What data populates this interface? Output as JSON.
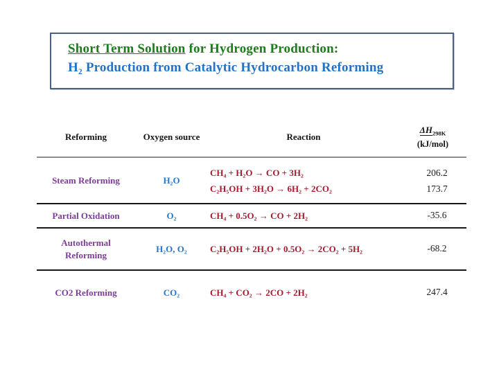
{
  "colors": {
    "title_green": "#1e7b1e",
    "title_blue": "#2272c6",
    "label_purple": "#7d3c98",
    "oxygen_blue": "#2777cc",
    "reaction_red": "#a51c30",
    "box_border": "#4d6080",
    "header_rule_gray": "#8c8c8c",
    "row_rule_black": "#161616"
  },
  "title_box": {
    "line1_underlined": "Short Term Solution",
    "line1_rest": " for Hydrogen Production:",
    "line2": "H₂ Production from Catalytic Hydrocarbon Reforming"
  },
  "table": {
    "headers": {
      "reforming": "Reforming",
      "oxygen_source": "Oxygen source",
      "reaction": "Reaction",
      "dh_symbol": "ΔH",
      "dh_subscript": "298K",
      "dh_units": "(kJ/mol)"
    },
    "rows": [
      {
        "reforming": "Steam Reforming",
        "oxygen_source": "H₂O",
        "reactions": [
          "CH₄ + H₂O → CO + 3H₂",
          "C₂H₅OH + 3H₂O → 6H₂ + 2CO₂"
        ],
        "dh": [
          "206.2",
          "173.7"
        ]
      },
      {
        "reforming": "Partial Oxidation",
        "oxygen_source": "O₂",
        "reactions": [
          "CH₄ + 0.5O₂ → CO + 2H₂"
        ],
        "dh": [
          "-35.6"
        ]
      },
      {
        "reforming": "Autothermal Reforming",
        "oxygen_source": "H₂O, O₂",
        "reactions": [
          "C₂H₅OH + 2H₂O + 0.5O₂ → 2CO₂ + 5H₂"
        ],
        "dh": [
          "-68.2"
        ]
      },
      {
        "reforming": "CO2 Reforming",
        "oxygen_source": "CO₂",
        "reactions": [
          "CH₄ + CO₂ → 2CO + 2H₂"
        ],
        "dh": [
          "247.4"
        ]
      }
    ]
  }
}
